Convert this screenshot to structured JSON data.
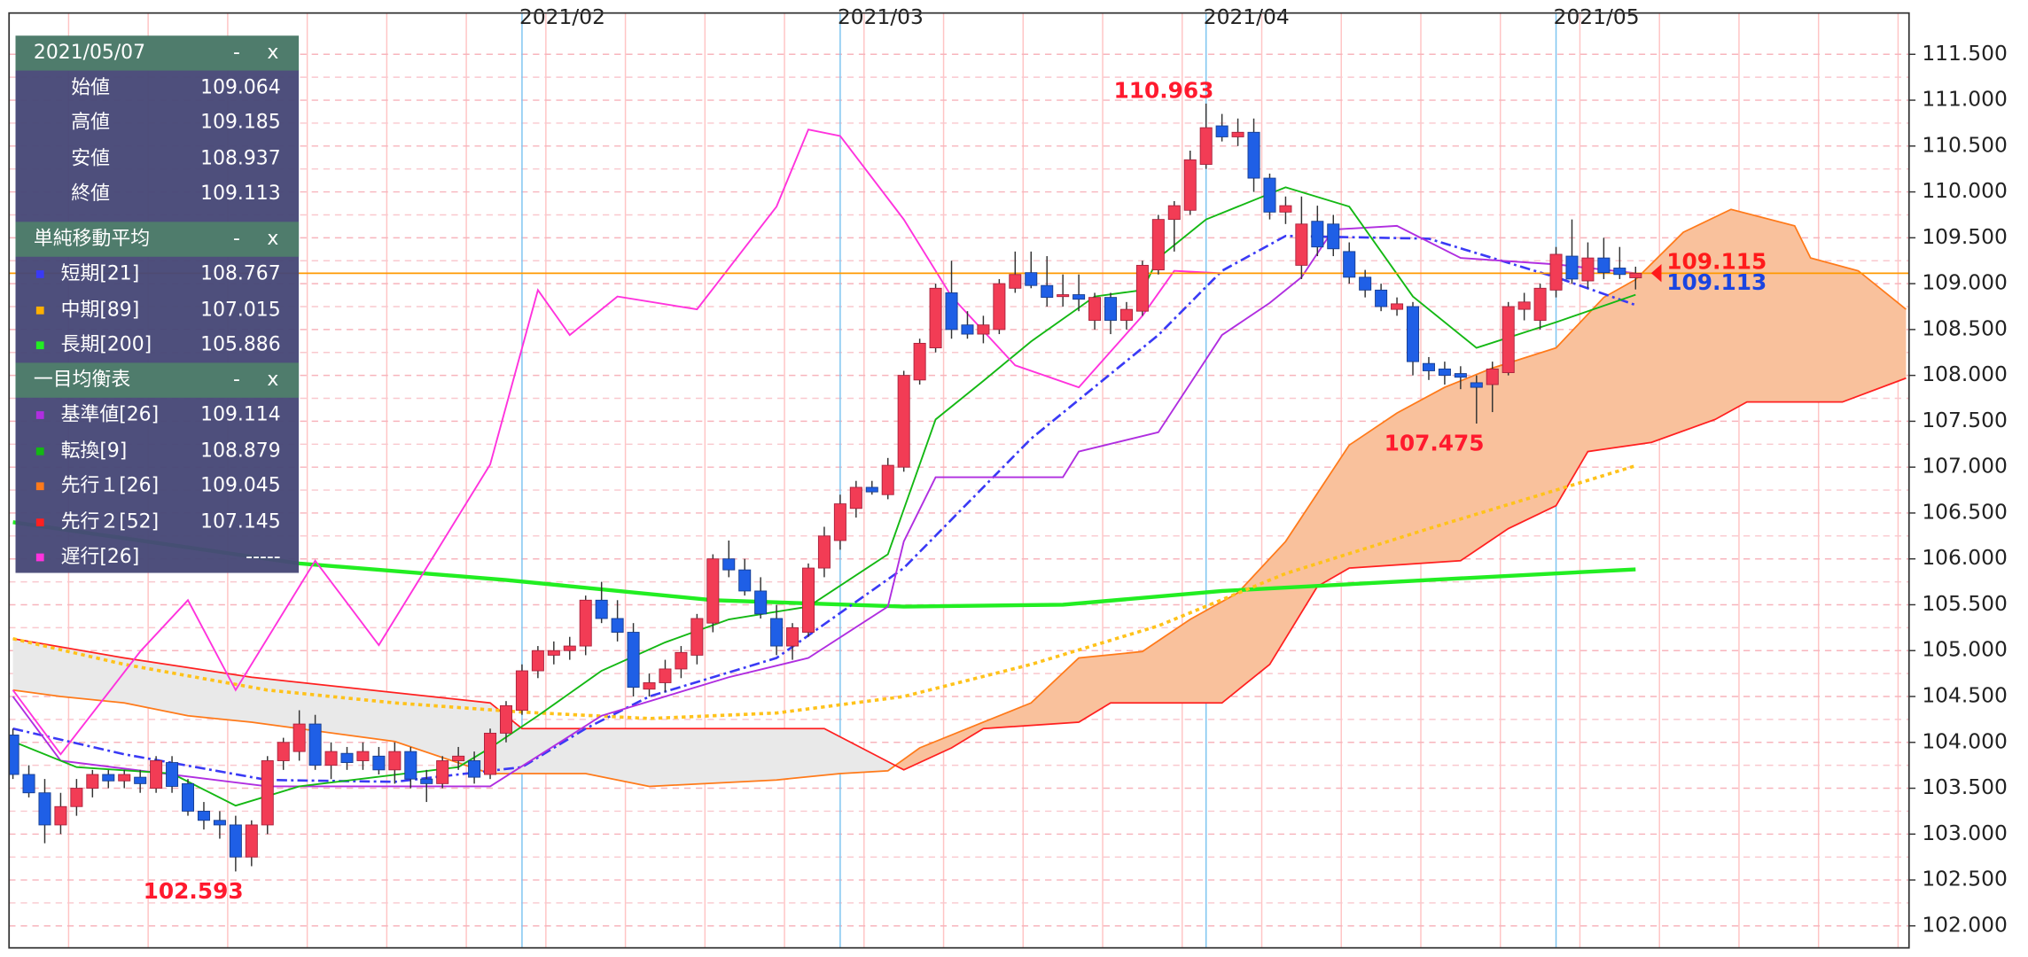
{
  "chart_data": {
    "type": "candlestick",
    "categories": [
      null,
      null,
      null,
      null,
      null,
      null,
      null,
      null,
      null,
      null,
      null,
      null,
      null,
      null,
      null,
      null,
      null,
      null,
      null,
      null,
      null,
      null,
      null,
      null,
      null,
      null,
      null,
      null,
      null,
      null,
      null,
      null,
      "2021/02",
      null,
      null,
      null,
      null,
      null,
      null,
      null,
      null,
      null,
      null,
      null,
      null,
      null,
      null,
      null,
      null,
      null,
      null,
      null,
      "2021/03",
      null,
      null,
      null,
      null,
      null,
      null,
      null,
      null,
      null,
      null,
      null,
      null,
      null,
      null,
      null,
      null,
      null,
      null,
      null,
      null,
      null,
      null,
      "2021/04",
      null,
      null,
      null,
      null,
      null,
      null,
      null,
      null,
      null,
      null,
      null,
      null,
      null,
      null,
      null,
      null,
      null,
      null,
      null,
      null,
      null,
      "2021/05",
      null,
      null,
      null,
      null,
      null
    ],
    "candles": [
      [
        104.08,
        104.15,
        103.6,
        103.65
      ],
      [
        103.65,
        103.75,
        103.4,
        103.45
      ],
      [
        103.45,
        103.6,
        102.9,
        103.1
      ],
      [
        103.1,
        103.45,
        103.0,
        103.3
      ],
      [
        103.3,
        103.6,
        103.2,
        103.5
      ],
      [
        103.5,
        103.7,
        103.4,
        103.65
      ],
      [
        103.65,
        103.7,
        103.5,
        103.58
      ],
      [
        103.58,
        103.7,
        103.5,
        103.65
      ],
      [
        103.62,
        103.7,
        103.45,
        103.55
      ],
      [
        103.5,
        103.85,
        103.45,
        103.8
      ],
      [
        103.78,
        103.85,
        103.45,
        103.52
      ],
      [
        103.55,
        103.6,
        103.2,
        103.25
      ],
      [
        103.25,
        103.35,
        103.05,
        103.15
      ],
      [
        103.15,
        103.25,
        102.95,
        103.1
      ],
      [
        103.1,
        103.2,
        102.593,
        102.75
      ],
      [
        102.75,
        103.15,
        102.65,
        103.1
      ],
      [
        103.1,
        103.85,
        103.0,
        103.8
      ],
      [
        103.8,
        104.05,
        103.7,
        104.0
      ],
      [
        103.9,
        104.35,
        103.8,
        104.2
      ],
      [
        104.2,
        104.3,
        103.7,
        103.75
      ],
      [
        103.75,
        104.0,
        103.6,
        103.9
      ],
      [
        103.88,
        103.95,
        103.7,
        103.78
      ],
      [
        103.8,
        104.0,
        103.7,
        103.9
      ],
      [
        103.85,
        103.95,
        103.65,
        103.7
      ],
      [
        103.7,
        104.0,
        103.55,
        103.9
      ],
      [
        103.9,
        103.95,
        103.5,
        103.6
      ],
      [
        103.6,
        103.7,
        103.35,
        103.55
      ],
      [
        103.55,
        103.85,
        103.5,
        103.8
      ],
      [
        103.8,
        103.95,
        103.7,
        103.85
      ],
      [
        103.8,
        103.9,
        103.55,
        103.62
      ],
      [
        103.65,
        104.15,
        103.6,
        104.1
      ],
      [
        104.1,
        104.45,
        104.0,
        104.4
      ],
      [
        104.35,
        104.85,
        104.3,
        104.78
      ],
      [
        104.78,
        105.05,
        104.7,
        105.0
      ],
      [
        104.95,
        105.1,
        104.85,
        105.0
      ],
      [
        105.0,
        105.15,
        104.9,
        105.05
      ],
      [
        105.05,
        105.6,
        104.95,
        105.55
      ],
      [
        105.55,
        105.75,
        105.3,
        105.35
      ],
      [
        105.35,
        105.55,
        105.1,
        105.2
      ],
      [
        105.2,
        105.3,
        104.5,
        104.6
      ],
      [
        104.58,
        104.75,
        104.5,
        104.65
      ],
      [
        104.65,
        104.9,
        104.55,
        104.8
      ],
      [
        104.8,
        105.05,
        104.7,
        104.98
      ],
      [
        104.95,
        105.4,
        104.85,
        105.35
      ],
      [
        105.3,
        106.05,
        105.2,
        106.0
      ],
      [
        106.0,
        106.2,
        105.8,
        105.88
      ],
      [
        105.88,
        106.0,
        105.6,
        105.65
      ],
      [
        105.65,
        105.8,
        105.35,
        105.4
      ],
      [
        105.35,
        105.5,
        104.95,
        105.05
      ],
      [
        105.05,
        105.3,
        104.9,
        105.25
      ],
      [
        105.2,
        105.95,
        105.15,
        105.9
      ],
      [
        105.9,
        106.35,
        105.8,
        106.25
      ],
      [
        106.2,
        106.7,
        106.1,
        106.6
      ],
      [
        106.55,
        106.85,
        106.45,
        106.78
      ],
      [
        106.78,
        106.85,
        106.7,
        106.73
      ],
      [
        106.7,
        107.1,
        106.65,
        107.02
      ],
      [
        107.0,
        108.05,
        106.95,
        108.0
      ],
      [
        107.95,
        108.4,
        107.9,
        108.35
      ],
      [
        108.3,
        109.0,
        108.25,
        108.95
      ],
      [
        108.9,
        109.25,
        108.4,
        108.5
      ],
      [
        108.55,
        108.7,
        108.4,
        108.45
      ],
      [
        108.45,
        108.65,
        108.35,
        108.55
      ],
      [
        108.5,
        109.05,
        108.45,
        109.0
      ],
      [
        108.95,
        109.35,
        108.9,
        109.1
      ],
      [
        109.12,
        109.35,
        108.95,
        108.98
      ],
      [
        108.98,
        109.3,
        108.75,
        108.85
      ],
      [
        108.86,
        109.1,
        108.75,
        108.88
      ],
      [
        108.88,
        109.1,
        108.7,
        108.83
      ],
      [
        108.6,
        108.9,
        108.5,
        108.85
      ],
      [
        108.85,
        108.9,
        108.45,
        108.6
      ],
      [
        108.6,
        108.8,
        108.5,
        108.72
      ],
      [
        108.7,
        109.25,
        108.65,
        109.2
      ],
      [
        109.15,
        109.75,
        109.1,
        109.7
      ],
      [
        109.7,
        109.9,
        109.35,
        109.85
      ],
      [
        109.8,
        110.45,
        109.75,
        110.35
      ],
      [
        110.3,
        110.963,
        110.25,
        110.7
      ],
      [
        110.72,
        110.85,
        110.55,
        110.6
      ],
      [
        110.6,
        110.8,
        110.5,
        110.65
      ],
      [
        110.65,
        110.8,
        110.0,
        110.15
      ],
      [
        110.15,
        110.2,
        109.7,
        109.78
      ],
      [
        109.78,
        109.95,
        109.65,
        109.85
      ],
      [
        109.2,
        109.95,
        109.05,
        109.65
      ],
      [
        109.68,
        109.85,
        109.3,
        109.4
      ],
      [
        109.65,
        109.75,
        109.3,
        109.38
      ],
      [
        109.35,
        109.45,
        109.0,
        109.07
      ],
      [
        109.07,
        109.15,
        108.85,
        108.93
      ],
      [
        108.93,
        109.0,
        108.7,
        108.75
      ],
      [
        108.72,
        108.85,
        108.65,
        108.78
      ],
      [
        108.75,
        108.8,
        108.0,
        108.15
      ],
      [
        108.13,
        108.2,
        107.95,
        108.05
      ],
      [
        108.07,
        108.15,
        107.9,
        108.0
      ],
      [
        108.02,
        108.1,
        107.85,
        107.98
      ],
      [
        107.92,
        108.0,
        107.475,
        107.87
      ],
      [
        107.9,
        108.15,
        107.6,
        108.07
      ],
      [
        108.03,
        108.8,
        108.0,
        108.75
      ],
      [
        108.72,
        108.9,
        108.6,
        108.8
      ],
      [
        108.6,
        109.0,
        108.5,
        108.95
      ],
      [
        108.93,
        109.4,
        108.85,
        109.32
      ],
      [
        109.3,
        109.7,
        109.0,
        109.05
      ],
      [
        109.03,
        109.45,
        108.95,
        109.28
      ],
      [
        109.28,
        109.5,
        109.05,
        109.12
      ],
      [
        109.17,
        109.4,
        109.05,
        109.1
      ],
      [
        109.064,
        109.185,
        108.937,
        109.113
      ]
    ],
    "up_color": "#f23c55",
    "down_color": "#1f5fe6",
    "series": [
      {
        "color": "#ff7a1a",
        "kind": "senkou1",
        "dash": "solid",
        "width": 1.2,
        "x": [
          0,
          3,
          7,
          11,
          15,
          24,
          30,
          36,
          40,
          48,
          52,
          55,
          57,
          61,
          64,
          67,
          71,
          74,
          77,
          80,
          84,
          87,
          90,
          93,
          97,
          100,
          102,
          105,
          108,
          112,
          113,
          116,
          119
        ],
        "values": [
          104.57,
          104.5,
          104.43,
          104.29,
          104.22,
          104.01,
          103.66,
          103.66,
          103.52,
          103.59,
          103.66,
          103.69,
          103.94,
          104.22,
          104.43,
          104.92,
          104.99,
          105.34,
          105.63,
          106.19,
          107.24,
          107.59,
          107.87,
          108.08,
          108.3,
          108.85,
          109.045,
          109.56,
          109.81,
          109.63,
          109.28,
          109.14,
          108.72
        ]
      },
      {
        "color": "#ff2020",
        "kind": "senkou2",
        "dash": "solid",
        "width": 1.2,
        "x": [
          0,
          7,
          15,
          30,
          32,
          51,
          56,
          59,
          61,
          67,
          69,
          76,
          79,
          82,
          84,
          91,
          94,
          97,
          99,
          103,
          107,
          109,
          115,
          119
        ],
        "values": [
          105.13,
          104.92,
          104.71,
          104.43,
          104.15,
          104.15,
          103.7,
          103.94,
          104.15,
          104.22,
          104.43,
          104.43,
          104.85,
          105.7,
          105.9,
          105.98,
          106.33,
          106.58,
          107.17,
          107.27,
          107.52,
          107.71,
          107.71,
          107.97
        ]
      },
      {
        "color": "#22ee22",
        "dash": "solid",
        "width": 3,
        "x": [
          0,
          18,
          31,
          44,
          56,
          66,
          76,
          89,
          102
        ],
        "values": [
          106.4,
          105.95,
          105.77,
          105.55,
          105.48,
          105.5,
          105.65,
          105.77,
          105.886
        ]
      },
      {
        "color": "#ffc21a",
        "dash": "dotted",
        "width": 2.5,
        "x": [
          0,
          7,
          16,
          24,
          32,
          40,
          48,
          56,
          64,
          72,
          80,
          89,
          97,
          102
        ],
        "values": [
          105.13,
          104.85,
          104.57,
          104.43,
          104.33,
          104.26,
          104.32,
          104.5,
          104.85,
          105.27,
          105.84,
          106.33,
          106.75,
          107.015
        ]
      },
      {
        "color": "#3a3af5",
        "dash": "dashdot",
        "width": 1.8,
        "x": [
          0,
          7,
          16,
          24,
          32,
          36,
          40,
          48,
          56,
          64,
          72,
          76,
          80,
          89,
          97,
          102
        ],
        "values": [
          104.15,
          103.87,
          103.59,
          103.57,
          103.73,
          104.15,
          104.5,
          104.92,
          105.9,
          107.31,
          108.44,
          109.14,
          109.52,
          109.49,
          109.07,
          108.767
        ]
      },
      {
        "color": "#b02ee0",
        "dash": "solid",
        "width": 1.3,
        "x": [
          0,
          3,
          16,
          30,
          37,
          45,
          50,
          55,
          56,
          58,
          66,
          67,
          72,
          76,
          79,
          81,
          83,
          87,
          91,
          97,
          102
        ],
        "values": [
          104.5,
          103.8,
          103.52,
          103.52,
          104.29,
          104.71,
          104.92,
          105.48,
          106.19,
          106.89,
          106.89,
          107.17,
          107.38,
          108.44,
          108.79,
          109.07,
          109.59,
          109.63,
          109.28,
          109.21,
          109.114
        ]
      },
      {
        "color": "#14b814",
        "dash": "solid",
        "width": 1.3,
        "x": [
          0,
          4,
          10,
          14,
          18,
          28,
          30,
          33,
          37,
          41,
          45,
          50,
          55,
          58,
          61,
          64,
          68,
          71,
          72,
          75,
          80,
          84,
          88,
          92,
          97,
          102
        ],
        "values": [
          104.01,
          103.73,
          103.66,
          103.31,
          103.52,
          103.73,
          103.94,
          104.29,
          104.78,
          105.09,
          105.34,
          105.48,
          106.05,
          107.52,
          107.94,
          108.37,
          108.86,
          108.93,
          109.28,
          109.7,
          110.05,
          109.84,
          108.86,
          108.3,
          108.58,
          108.879
        ]
      },
      {
        "color": "#ff33dd",
        "dash": "solid",
        "width": 1.3,
        "x": [
          0,
          3,
          8,
          11,
          14,
          19,
          23,
          30,
          33,
          35,
          38,
          43,
          48,
          50,
          52,
          56,
          59,
          63,
          67,
          71,
          73,
          76
        ],
        "values": [
          104.57,
          103.87,
          104.99,
          105.55,
          104.57,
          105.98,
          105.06,
          107.03,
          108.93,
          108.44,
          108.86,
          108.72,
          109.84,
          110.68,
          110.61,
          109.7,
          108.86,
          108.11,
          107.87,
          108.65,
          109.14,
          109.113
        ]
      }
    ],
    "cloud_colors": {
      "bull": "#f9c19c",
      "bear": "#e9e9e9"
    },
    "hline": {
      "value": 109.113,
      "color": "#ff9900"
    },
    "annotations": [
      {
        "x": 75,
        "value": 110.963,
        "position": "above"
      },
      {
        "x": 92,
        "value": 107.475,
        "position": "below"
      },
      {
        "x": 14,
        "value": 102.593,
        "position": "below"
      }
    ],
    "price_markers": [
      {
        "value": 109.115,
        "color": "#ff1a1a"
      },
      {
        "value": 109.113,
        "color": "#1a44e0"
      }
    ],
    "ylim": [
      101.76,
      111.95
    ],
    "yticks": [
      {
        "value": 102,
        "label": "102.000"
      },
      {
        "value": 102.5,
        "label": "102.500"
      },
      {
        "value": 103,
        "label": "103.000"
      },
      {
        "value": 103.5,
        "label": "103.500"
      },
      {
        "value": 104,
        "label": "104.000"
      },
      {
        "value": 104.5,
        "label": "104.500"
      },
      {
        "value": 105,
        "label": "105.000"
      },
      {
        "value": 105.5,
        "label": "105.500"
      },
      {
        "value": 106,
        "label": "106.000"
      },
      {
        "value": 106.5,
        "label": "106.500"
      },
      {
        "value": 107,
        "label": "107.000"
      },
      {
        "value": 107.5,
        "label": "107.500"
      },
      {
        "value": 108,
        "label": "108.000"
      },
      {
        "value": 108.5,
        "label": "108.500"
      },
      {
        "value": 109,
        "label": "109.000"
      },
      {
        "value": 109.5,
        "label": "109.500"
      },
      {
        "value": 110,
        "label": "110.000"
      },
      {
        "value": 110.5,
        "label": "110.500"
      },
      {
        "value": 111,
        "label": "111.000"
      },
      {
        "value": 111.5,
        "label": "111.500"
      }
    ],
    "grid": true
  },
  "info_panel": {
    "date": "2021/05/07",
    "minimize": "-",
    "close": "x",
    "ohlc": [
      {
        "label": "始値",
        "value": 109.064
      },
      {
        "label": "高値",
        "value": 109.185
      },
      {
        "label": "安値",
        "value": 108.937
      },
      {
        "label": "終値",
        "value": 109.113
      }
    ],
    "sma": {
      "title": "単純移動平均",
      "rows": [
        {
          "label": "短期[21]",
          "value": 108.767,
          "color": "#3a3af5"
        },
        {
          "label": "中期[89]",
          "value": 107.015,
          "color": "#ffb000"
        },
        {
          "label": "長期[200]",
          "value": 105.886,
          "color": "#22ee22"
        }
      ]
    },
    "ichimoku": {
      "title": "一目均衡表",
      "rows": [
        {
          "label": "基準値[26]",
          "value": 109.114,
          "color": "#b02ee0"
        },
        {
          "label": "転換[9]",
          "value": 108.879,
          "color": "#14b814"
        },
        {
          "label": "先行１[26]",
          "value": 109.045,
          "color": "#ff7a1a"
        },
        {
          "label": "先行２[52]",
          "value": 107.145,
          "color": "#ff2020"
        },
        {
          "label": "遅行[26]",
          "value": "-----",
          "color": "#ff33dd"
        }
      ]
    }
  }
}
